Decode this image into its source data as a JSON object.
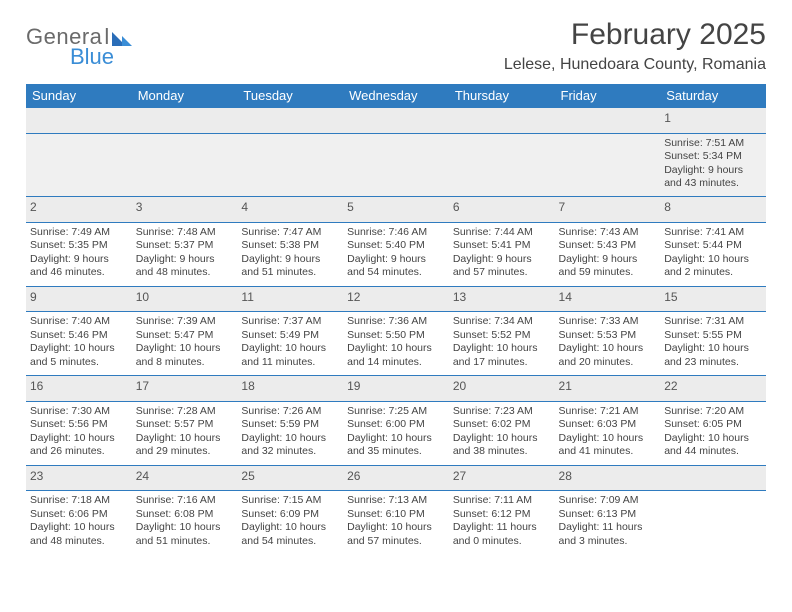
{
  "brand": {
    "part1": "Genera",
    "part2": "l",
    "line2": "Blue"
  },
  "title": "February 2025",
  "location": "Lelese, Hunedoara County, Romania",
  "colors": {
    "header_bg": "#2f7bbf",
    "header_fg": "#ffffff",
    "row_border": "#2f7bbf",
    "daynum_bg": "#ececec",
    "text": "#444444",
    "logo_gray": "#6a6a6a",
    "logo_blue": "#3a8dd6"
  },
  "weekdays": [
    "Sunday",
    "Monday",
    "Tuesday",
    "Wednesday",
    "Thursday",
    "Friday",
    "Saturday"
  ],
  "weeks": [
    [
      {
        "n": "",
        "sr": "",
        "ss": "",
        "dl": ""
      },
      {
        "n": "",
        "sr": "",
        "ss": "",
        "dl": ""
      },
      {
        "n": "",
        "sr": "",
        "ss": "",
        "dl": ""
      },
      {
        "n": "",
        "sr": "",
        "ss": "",
        "dl": ""
      },
      {
        "n": "",
        "sr": "",
        "ss": "",
        "dl": ""
      },
      {
        "n": "",
        "sr": "",
        "ss": "",
        "dl": ""
      },
      {
        "n": "1",
        "sr": "Sunrise: 7:51 AM",
        "ss": "Sunset: 5:34 PM",
        "dl": "Daylight: 9 hours and 43 minutes."
      }
    ],
    [
      {
        "n": "2",
        "sr": "Sunrise: 7:49 AM",
        "ss": "Sunset: 5:35 PM",
        "dl": "Daylight: 9 hours and 46 minutes."
      },
      {
        "n": "3",
        "sr": "Sunrise: 7:48 AM",
        "ss": "Sunset: 5:37 PM",
        "dl": "Daylight: 9 hours and 48 minutes."
      },
      {
        "n": "4",
        "sr": "Sunrise: 7:47 AM",
        "ss": "Sunset: 5:38 PM",
        "dl": "Daylight: 9 hours and 51 minutes."
      },
      {
        "n": "5",
        "sr": "Sunrise: 7:46 AM",
        "ss": "Sunset: 5:40 PM",
        "dl": "Daylight: 9 hours and 54 minutes."
      },
      {
        "n": "6",
        "sr": "Sunrise: 7:44 AM",
        "ss": "Sunset: 5:41 PM",
        "dl": "Daylight: 9 hours and 57 minutes."
      },
      {
        "n": "7",
        "sr": "Sunrise: 7:43 AM",
        "ss": "Sunset: 5:43 PM",
        "dl": "Daylight: 9 hours and 59 minutes."
      },
      {
        "n": "8",
        "sr": "Sunrise: 7:41 AM",
        "ss": "Sunset: 5:44 PM",
        "dl": "Daylight: 10 hours and 2 minutes."
      }
    ],
    [
      {
        "n": "9",
        "sr": "Sunrise: 7:40 AM",
        "ss": "Sunset: 5:46 PM",
        "dl": "Daylight: 10 hours and 5 minutes."
      },
      {
        "n": "10",
        "sr": "Sunrise: 7:39 AM",
        "ss": "Sunset: 5:47 PM",
        "dl": "Daylight: 10 hours and 8 minutes."
      },
      {
        "n": "11",
        "sr": "Sunrise: 7:37 AM",
        "ss": "Sunset: 5:49 PM",
        "dl": "Daylight: 10 hours and 11 minutes."
      },
      {
        "n": "12",
        "sr": "Sunrise: 7:36 AM",
        "ss": "Sunset: 5:50 PM",
        "dl": "Daylight: 10 hours and 14 minutes."
      },
      {
        "n": "13",
        "sr": "Sunrise: 7:34 AM",
        "ss": "Sunset: 5:52 PM",
        "dl": "Daylight: 10 hours and 17 minutes."
      },
      {
        "n": "14",
        "sr": "Sunrise: 7:33 AM",
        "ss": "Sunset: 5:53 PM",
        "dl": "Daylight: 10 hours and 20 minutes."
      },
      {
        "n": "15",
        "sr": "Sunrise: 7:31 AM",
        "ss": "Sunset: 5:55 PM",
        "dl": "Daylight: 10 hours and 23 minutes."
      }
    ],
    [
      {
        "n": "16",
        "sr": "Sunrise: 7:30 AM",
        "ss": "Sunset: 5:56 PM",
        "dl": "Daylight: 10 hours and 26 minutes."
      },
      {
        "n": "17",
        "sr": "Sunrise: 7:28 AM",
        "ss": "Sunset: 5:57 PM",
        "dl": "Daylight: 10 hours and 29 minutes."
      },
      {
        "n": "18",
        "sr": "Sunrise: 7:26 AM",
        "ss": "Sunset: 5:59 PM",
        "dl": "Daylight: 10 hours and 32 minutes."
      },
      {
        "n": "19",
        "sr": "Sunrise: 7:25 AM",
        "ss": "Sunset: 6:00 PM",
        "dl": "Daylight: 10 hours and 35 minutes."
      },
      {
        "n": "20",
        "sr": "Sunrise: 7:23 AM",
        "ss": "Sunset: 6:02 PM",
        "dl": "Daylight: 10 hours and 38 minutes."
      },
      {
        "n": "21",
        "sr": "Sunrise: 7:21 AM",
        "ss": "Sunset: 6:03 PM",
        "dl": "Daylight: 10 hours and 41 minutes."
      },
      {
        "n": "22",
        "sr": "Sunrise: 7:20 AM",
        "ss": "Sunset: 6:05 PM",
        "dl": "Daylight: 10 hours and 44 minutes."
      }
    ],
    [
      {
        "n": "23",
        "sr": "Sunrise: 7:18 AM",
        "ss": "Sunset: 6:06 PM",
        "dl": "Daylight: 10 hours and 48 minutes."
      },
      {
        "n": "24",
        "sr": "Sunrise: 7:16 AM",
        "ss": "Sunset: 6:08 PM",
        "dl": "Daylight: 10 hours and 51 minutes."
      },
      {
        "n": "25",
        "sr": "Sunrise: 7:15 AM",
        "ss": "Sunset: 6:09 PM",
        "dl": "Daylight: 10 hours and 54 minutes."
      },
      {
        "n": "26",
        "sr": "Sunrise: 7:13 AM",
        "ss": "Sunset: 6:10 PM",
        "dl": "Daylight: 10 hours and 57 minutes."
      },
      {
        "n": "27",
        "sr": "Sunrise: 7:11 AM",
        "ss": "Sunset: 6:12 PM",
        "dl": "Daylight: 11 hours and 0 minutes."
      },
      {
        "n": "28",
        "sr": "Sunrise: 7:09 AM",
        "ss": "Sunset: 6:13 PM",
        "dl": "Daylight: 11 hours and 3 minutes."
      },
      {
        "n": "",
        "sr": "",
        "ss": "",
        "dl": ""
      }
    ]
  ]
}
